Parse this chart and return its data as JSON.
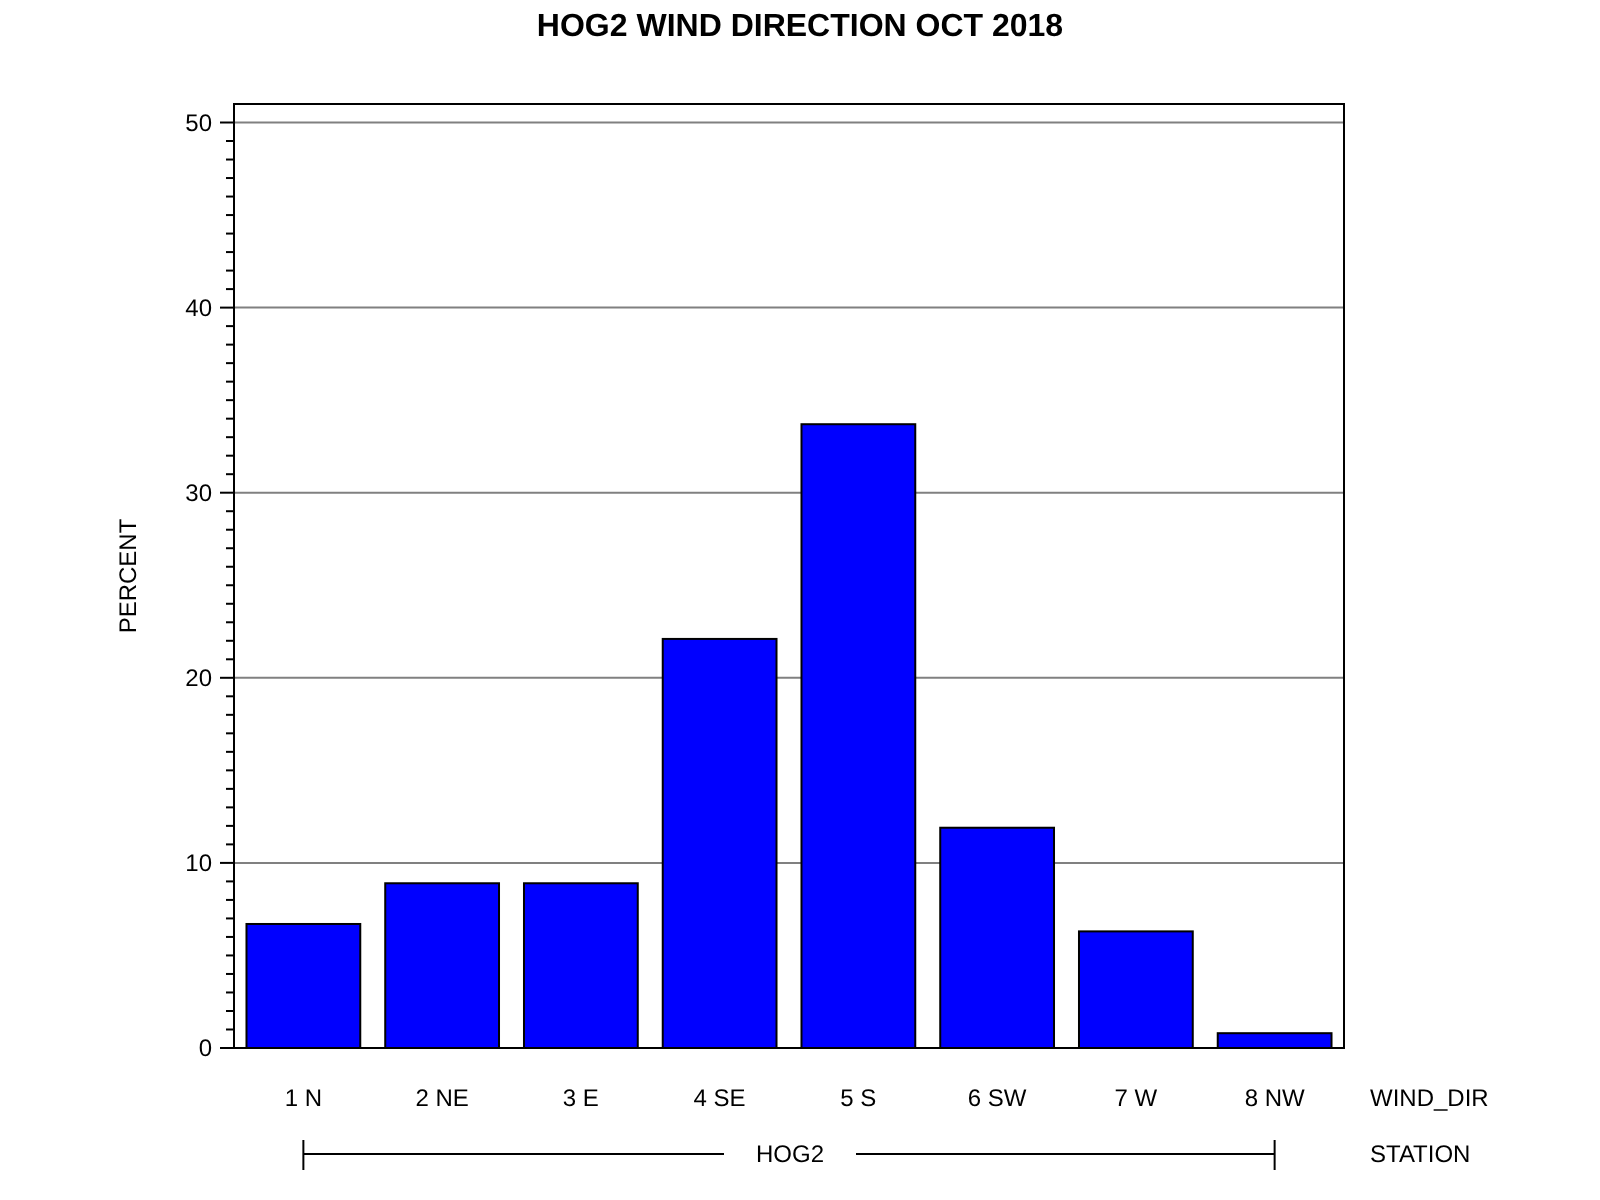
{
  "chart_data": {
    "type": "bar",
    "title": "HOG2 WIND DIRECTION OCT 2018",
    "xlabel": "WIND_DIR",
    "ylabel": "PERCENT",
    "annotations": [
      "HOG2",
      "STATION"
    ],
    "categories": [
      "1 N",
      "2 NE",
      "3 E",
      "4 SE",
      "5 S",
      "6 SW",
      "7 W",
      "8 NW"
    ],
    "values": [
      6.7,
      8.9,
      8.9,
      22.1,
      33.7,
      11.9,
      6.3,
      0.8
    ],
    "color": "#0000ff",
    "ylim": [
      0,
      51
    ],
    "yticks": [
      0,
      {
        "value": 1,
        "label": null
      },
      {
        "value": 2,
        "label": null
      },
      {
        "value": 3,
        "label": null
      },
      {
        "value": 4,
        "label": null
      },
      {
        "value": 5,
        "label": null
      },
      {
        "value": 6,
        "label": null
      },
      {
        "value": 7,
        "label": null
      },
      {
        "value": 8,
        "label": null
      },
      {
        "value": 9,
        "label": null
      },
      10,
      {
        "value": 11,
        "label": null
      },
      {
        "value": 12,
        "label": null
      },
      {
        "value": 13,
        "label": null
      },
      {
        "value": 14,
        "label": null
      },
      {
        "value": 15,
        "label": null
      },
      {
        "value": 16,
        "label": null
      },
      {
        "value": 17,
        "label": null
      },
      {
        "value": 18,
        "label": null
      },
      {
        "value": 19,
        "label": null
      },
      20,
      {
        "value": 21,
        "label": null
      },
      {
        "value": 22,
        "label": null
      },
      {
        "value": 23,
        "label": null
      },
      {
        "value": 24,
        "label": null
      },
      {
        "value": 25,
        "label": null
      },
      {
        "value": 26,
        "label": null
      },
      {
        "value": 27,
        "label": null
      },
      {
        "value": 28,
        "label": null
      },
      {
        "value": 29,
        "label": null
      },
      30,
      {
        "value": 31,
        "label": null
      },
      {
        "value": 32,
        "label": null
      },
      {
        "value": 33,
        "label": null
      },
      {
        "value": 34,
        "label": null
      },
      {
        "value": 35,
        "label": null
      },
      {
        "value": 36,
        "label": null
      },
      {
        "value": 37,
        "label": null
      },
      {
        "value": 38,
        "label": null
      },
      {
        "value": 39,
        "label": null
      },
      40,
      {
        "value": 41,
        "label": null
      },
      {
        "value": 42,
        "label": null
      },
      {
        "value": 43,
        "label": null
      },
      {
        "value": 44,
        "label": null
      },
      {
        "value": 45,
        "label": null
      },
      {
        "value": 46,
        "label": null
      },
      {
        "value": 47,
        "label": null
      },
      {
        "value": 48,
        "label": null
      },
      {
        "value": 49,
        "label": null
      },
      50
    ],
    "grid": "y"
  }
}
